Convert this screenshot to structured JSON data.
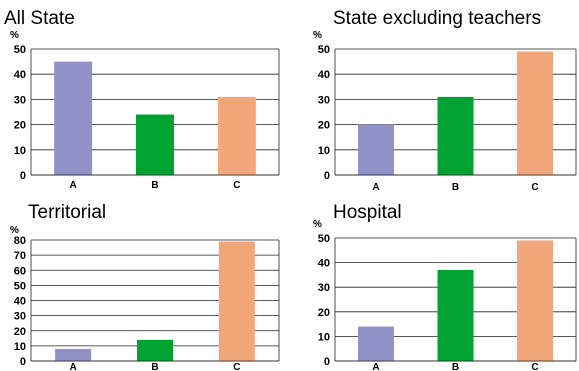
{
  "chart_data": [
    {
      "type": "bar",
      "title": "All State",
      "unit": "%",
      "categories": [
        "A",
        "B",
        "C"
      ],
      "values": [
        45,
        24,
        31
      ],
      "ylim": [
        0,
        50
      ],
      "yticks": [
        0,
        10,
        20,
        30,
        40,
        50
      ],
      "grid": true,
      "colors": [
        "#9191c8",
        "#00a332",
        "#f2a77a"
      ]
    },
    {
      "type": "bar",
      "title": "State excluding teachers",
      "unit": "%",
      "categories": [
        "A",
        "B",
        "C"
      ],
      "values": [
        20,
        31,
        49
      ],
      "ylim": [
        0,
        50
      ],
      "yticks": [
        0,
        10,
        20,
        30,
        40,
        50
      ],
      "grid": true,
      "colors": [
        "#9191c8",
        "#00a332",
        "#f2a77a"
      ]
    },
    {
      "type": "bar",
      "title": "Territorial",
      "unit": "%",
      "categories": [
        "A",
        "B",
        "C"
      ],
      "values": [
        8,
        14,
        79
      ],
      "ylim": [
        0,
        80
      ],
      "yticks": [
        0,
        10,
        20,
        30,
        40,
        50,
        60,
        70,
        80
      ],
      "grid": true,
      "colors": [
        "#9191c8",
        "#00a332",
        "#f2a77a"
      ]
    },
    {
      "type": "bar",
      "title": "Hospital",
      "unit": "%",
      "categories": [
        "A",
        "B",
        "C"
      ],
      "values": [
        14,
        37,
        49
      ],
      "ylim": [
        0,
        50
      ],
      "yticks": [
        0,
        10,
        20,
        30,
        40,
        50
      ],
      "grid": true,
      "colors": [
        "#9191c8",
        "#00a332",
        "#f2a77a"
      ]
    }
  ]
}
